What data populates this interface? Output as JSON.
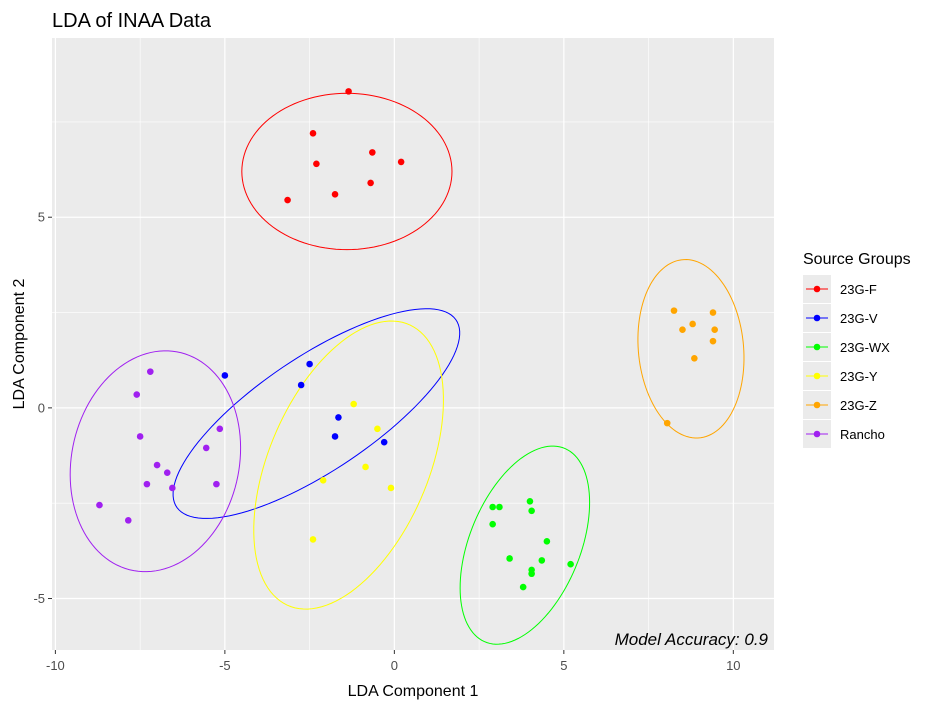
{
  "chart_data": {
    "type": "scatter",
    "title": "LDA of INAA Data",
    "xlabel": "LDA Component 1",
    "ylabel": "LDA Component 2",
    "xlim": [
      -10.1,
      11.2
    ],
    "ylim": [
      -6.35,
      9.7
    ],
    "xticks": [
      -10,
      -5,
      0,
      5,
      10
    ],
    "yticks": [
      -5,
      0,
      5
    ],
    "xtick_labels": [
      "-10",
      "-5",
      "0",
      "5",
      "10"
    ],
    "ytick_labels": [
      "-5",
      "0",
      "5"
    ],
    "grid": true,
    "legend": {
      "title": "Source Groups",
      "position": "right"
    },
    "annotation": "Model Accuracy: 0.9",
    "series": [
      {
        "name": "23G-F",
        "color": "#ff0000",
        "points": [
          [
            -1.35,
            8.3
          ],
          [
            -2.4,
            7.2
          ],
          [
            -0.65,
            6.7
          ],
          [
            -2.3,
            6.4
          ],
          [
            0.2,
            6.45
          ],
          [
            -0.7,
            5.9
          ],
          [
            -1.75,
            5.6
          ],
          [
            -3.15,
            5.45
          ]
        ],
        "ellipse": {
          "cx": -1.4,
          "cy": 6.2,
          "rx": 3.1,
          "ry": 2.05,
          "angle": 0
        }
      },
      {
        "name": "23G-V",
        "color": "#0000ff",
        "points": [
          [
            -2.5,
            1.15
          ],
          [
            -5.0,
            0.85
          ],
          [
            -2.75,
            0.6
          ],
          [
            -1.65,
            -0.25
          ],
          [
            -1.75,
            -0.75
          ],
          [
            -0.3,
            -0.9
          ]
        ],
        "ellipse": {
          "cx": -2.3,
          "cy": -0.15,
          "rx": 4.8,
          "ry": 1.55,
          "angle": 30
        }
      },
      {
        "name": "23G-WX",
        "color": "#00ff00",
        "points": [
          [
            2.9,
            -2.6
          ],
          [
            3.1,
            -2.6
          ],
          [
            2.9,
            -3.05
          ],
          [
            4.0,
            -2.45
          ],
          [
            4.05,
            -2.7
          ],
          [
            4.5,
            -3.5
          ],
          [
            3.4,
            -3.95
          ],
          [
            4.35,
            -4.0
          ],
          [
            4.05,
            -4.25
          ],
          [
            4.05,
            -4.35
          ],
          [
            3.8,
            -4.7
          ],
          [
            5.2,
            -4.1
          ]
        ],
        "ellipse": {
          "cx": 3.85,
          "cy": -3.6,
          "rx": 2.8,
          "ry": 1.6,
          "angle": 63
        }
      },
      {
        "name": "23G-Y",
        "color": "#ffff00",
        "points": [
          [
            -1.2,
            0.1
          ],
          [
            -0.5,
            -0.55
          ],
          [
            -0.85,
            -1.55
          ],
          [
            -2.1,
            -1.9
          ],
          [
            -0.1,
            -2.1
          ],
          [
            -2.4,
            -3.45
          ]
        ],
        "ellipse": {
          "cx": -1.35,
          "cy": -1.5,
          "rx": 4.1,
          "ry": 2.3,
          "angle": 62
        }
      },
      {
        "name": "23G-Z",
        "color": "#ffa500",
        "points": [
          [
            8.25,
            2.55
          ],
          [
            9.4,
            2.5
          ],
          [
            8.8,
            2.2
          ],
          [
            8.5,
            2.05
          ],
          [
            9.45,
            2.05
          ],
          [
            9.4,
            1.75
          ],
          [
            8.85,
            1.3
          ],
          [
            8.05,
            -0.4
          ]
        ],
        "ellipse": {
          "cx": 8.75,
          "cy": 1.55,
          "rx": 2.35,
          "ry": 1.55,
          "angle": 97
        }
      },
      {
        "name": "Rancho",
        "color": "#a020f0",
        "points": [
          [
            -7.2,
            0.95
          ],
          [
            -7.6,
            0.35
          ],
          [
            -5.15,
            -0.55
          ],
          [
            -7.5,
            -0.75
          ],
          [
            -5.55,
            -1.05
          ],
          [
            -7.0,
            -1.5
          ],
          [
            -6.7,
            -1.7
          ],
          [
            -7.3,
            -2.0
          ],
          [
            -5.25,
            -2.0
          ],
          [
            -6.55,
            -2.1
          ],
          [
            -8.7,
            -2.55
          ],
          [
            -7.85,
            -2.95
          ]
        ],
        "ellipse": {
          "cx": -7.05,
          "cy": -1.4,
          "rx": 2.95,
          "ry": 2.45,
          "angle": 70
        }
      }
    ]
  }
}
